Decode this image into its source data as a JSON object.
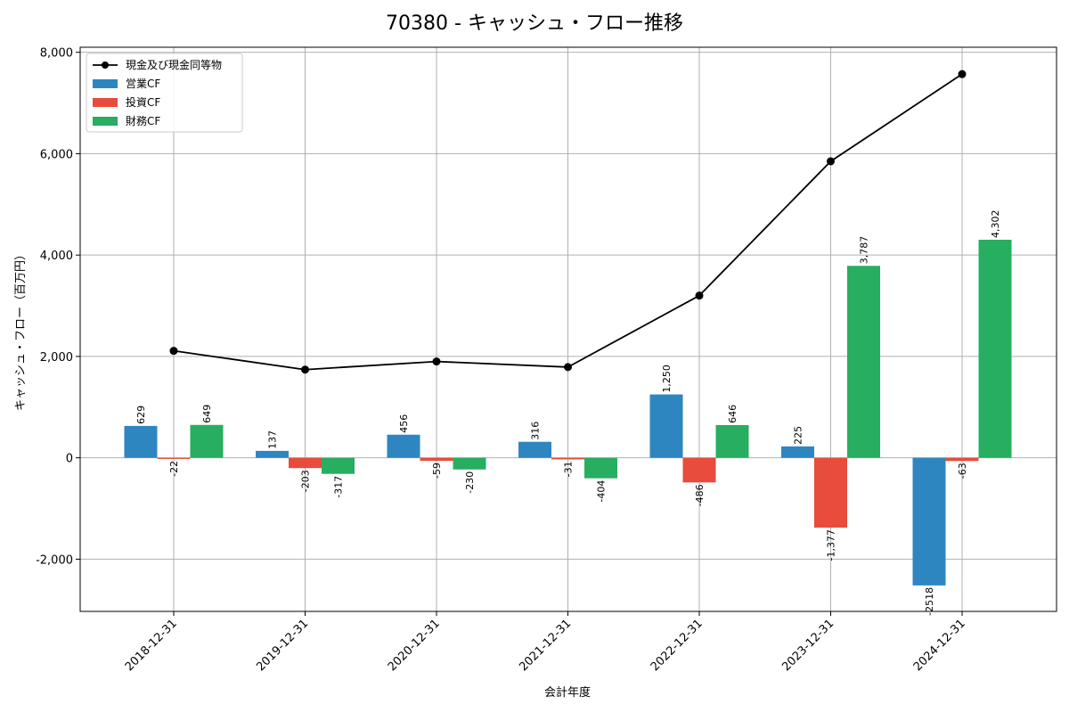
{
  "chart_data": {
    "type": "bar",
    "title": "70380 - キャッシュ・フロー推移",
    "xlabel": "会計年度",
    "ylabel": "キャッシュ・フロー（百万円）",
    "categories": [
      "2018-12-31",
      "2019-12-31",
      "2020-12-31",
      "2021-12-31",
      "2022-12-31",
      "2023-12-31",
      "2024-12-31"
    ],
    "series": [
      {
        "name": "営業CF",
        "type": "bar",
        "color": "#2e86c1",
        "values": [
          629,
          137,
          456,
          316,
          1250,
          225,
          -2518
        ],
        "labels": [
          "629",
          "137",
          "456",
          "316",
          "1,250",
          "225",
          "-2518"
        ]
      },
      {
        "name": "投資CF",
        "type": "bar",
        "color": "#e74c3c",
        "values": [
          -22,
          -203,
          -59,
          -31,
          -486,
          -1377,
          -63
        ],
        "labels": [
          "-22",
          "-203",
          "-59",
          "-31",
          "-486",
          "-1,377",
          "-63"
        ]
      },
      {
        "name": "財務CF",
        "type": "bar",
        "color": "#27ae60",
        "values": [
          649,
          -317,
          -230,
          -404,
          646,
          3787,
          4302
        ],
        "labels": [
          "649",
          "-317",
          "-230",
          "-404",
          "646",
          "3,787",
          "4,302"
        ]
      }
    ],
    "line": {
      "name": "現金及び現金同等物",
      "color": "#000000",
      "values": [
        2110,
        1740,
        1900,
        1790,
        3200,
        5850,
        7570
      ]
    },
    "yticks": [
      -2000,
      0,
      2000,
      4000,
      6000,
      8000
    ],
    "ytick_labels": [
      "-2,000",
      "0",
      "2,000",
      "4,000",
      "6,000",
      "8,000"
    ],
    "ylim": [
      -3030,
      8100
    ],
    "grid": true,
    "legend_position": "top-left"
  }
}
